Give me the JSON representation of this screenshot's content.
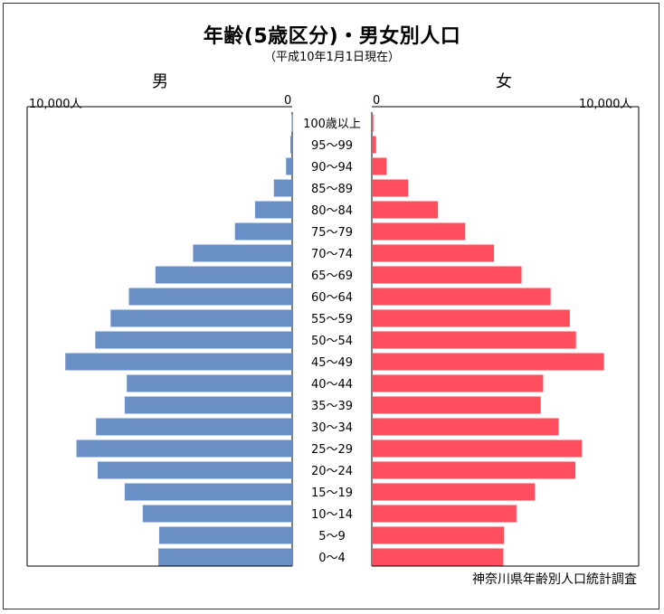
{
  "title": "年齢(5歳区分)・男女別人口",
  "subtitle": "（平成10年1月1日現在）",
  "labels": {
    "male": "男",
    "female": "女",
    "male_max": "10,000人",
    "male_zero": "0",
    "female_zero": "0",
    "female_max": "10,000人"
  },
  "source": "神奈川県年齢別人口統計調査",
  "colors": {
    "male": "#6b8fc7",
    "female": "#ff4f5e"
  },
  "chart_data": {
    "type": "bar",
    "orientation": "horizontal-population-pyramid",
    "unit": "人",
    "xlim": [
      0,
      10000
    ],
    "categories": [
      "100歳以上",
      "95～99",
      "90～94",
      "85～89",
      "80～84",
      "75～79",
      "70～74",
      "65～69",
      "60～64",
      "55～59",
      "50～54",
      "45～49",
      "40～44",
      "35～39",
      "30～34",
      "25～29",
      "20～24",
      "15～19",
      "10～14",
      "5～9",
      "0～4"
    ],
    "series": [
      {
        "name": "男",
        "values": [
          20,
          70,
          230,
          690,
          1400,
          2160,
          3740,
          5160,
          6160,
          6850,
          7430,
          8560,
          6240,
          6320,
          7400,
          8140,
          7340,
          6320,
          5640,
          5020,
          5050
        ]
      },
      {
        "name": "女",
        "values": [
          60,
          160,
          550,
          1360,
          2480,
          3500,
          4580,
          5610,
          6700,
          7420,
          7650,
          8700,
          6420,
          6330,
          7000,
          7870,
          7630,
          6110,
          5420,
          4950,
          4930
        ]
      }
    ]
  }
}
